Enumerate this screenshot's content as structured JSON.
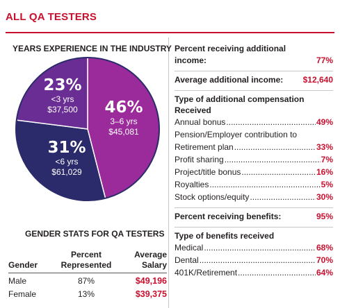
{
  "title": "ALL QA TESTERS",
  "colors": {
    "accent_red": "#c8102e",
    "purple": "#7b2c9b",
    "magenta": "#9b2a9a",
    "navy": "#2b2a6b"
  },
  "chart_data": {
    "type": "pie",
    "title": "YEARS EXPERIENCE IN THE INDUSTRY",
    "slices": [
      {
        "percent_label": "46%",
        "value": 46,
        "range": "3–6 yrs",
        "salary": "$45,081",
        "color": "#9b2a9a"
      },
      {
        "percent_label": "31%",
        "value": 31,
        "range": "<6 yrs",
        "salary": "$61,029",
        "color": "#2b2a6b"
      },
      {
        "percent_label": "23%",
        "value": 23,
        "range": "<3 yrs",
        "salary": "$37,500",
        "color": "#6a2d94"
      }
    ]
  },
  "gender": {
    "heading": "GENDER STATS FOR QA TESTERS",
    "columns": [
      "Gender",
      "Percent Represented",
      "Average Salary"
    ],
    "rows": [
      {
        "gender": "Male",
        "percent": "87%",
        "salary": "$49,196"
      },
      {
        "gender": "Female",
        "percent": "13%",
        "salary": "$39,375"
      }
    ]
  },
  "right": {
    "additional_income_label": "Percent receiving additional income:",
    "additional_income_value": "77%",
    "avg_additional_income_label": "Average additional income:",
    "avg_additional_income_value": "$12,640",
    "comp_heading": "Type of additional compensation Received",
    "comp_items": [
      {
        "label": "Annual bonus",
        "value": "49%"
      },
      {
        "label": "Pension/Employer contribution to",
        "label2": "Retirement plan",
        "value": "33%"
      },
      {
        "label": "Profit sharing",
        "value": "7%"
      },
      {
        "label": "Project/title bonus",
        "value": "16%"
      },
      {
        "label": "Royalties",
        "value": "5%"
      },
      {
        "label": "Stock options/equity",
        "value": "30%"
      }
    ],
    "benefits_label": "Percent receiving benefits:",
    "benefits_value": "95%",
    "benefits_heading": "Type of benefits received",
    "benefit_items": [
      {
        "label": "Medical",
        "value": "68%"
      },
      {
        "label": "Dental",
        "value": "70%"
      },
      {
        "label": "401K/Retirement",
        "value": "64%"
      }
    ]
  }
}
